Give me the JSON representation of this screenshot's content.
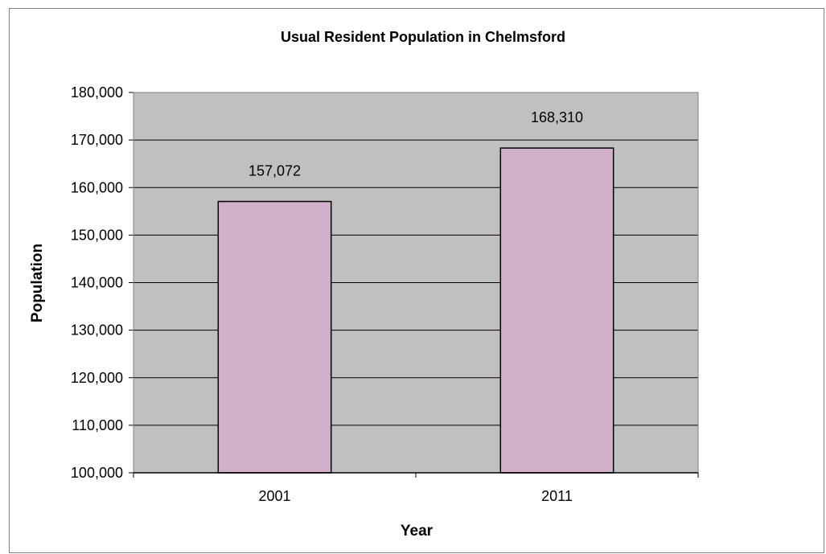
{
  "chart_data": {
    "type": "bar",
    "title": "Usual Resident Population in Chelmsford",
    "xlabel": "Year",
    "ylabel": "Population",
    "categories": [
      "2001",
      "2011"
    ],
    "values": [
      157072,
      168310
    ],
    "data_labels": [
      "157,072",
      "168,310"
    ],
    "ylim": [
      100000,
      180000
    ],
    "yticks": [
      100000,
      110000,
      120000,
      130000,
      140000,
      150000,
      160000,
      170000,
      180000
    ],
    "ytick_labels": [
      "100,000",
      "110,000",
      "120,000",
      "130,000",
      "140,000",
      "150,000",
      "160,000",
      "170,000",
      "180,000"
    ],
    "grid": true,
    "legend": "none",
    "colors": {
      "bar_fill": "#d2b0cb",
      "plot_background": "#c0c0c0",
      "gridline": "#000000"
    }
  }
}
